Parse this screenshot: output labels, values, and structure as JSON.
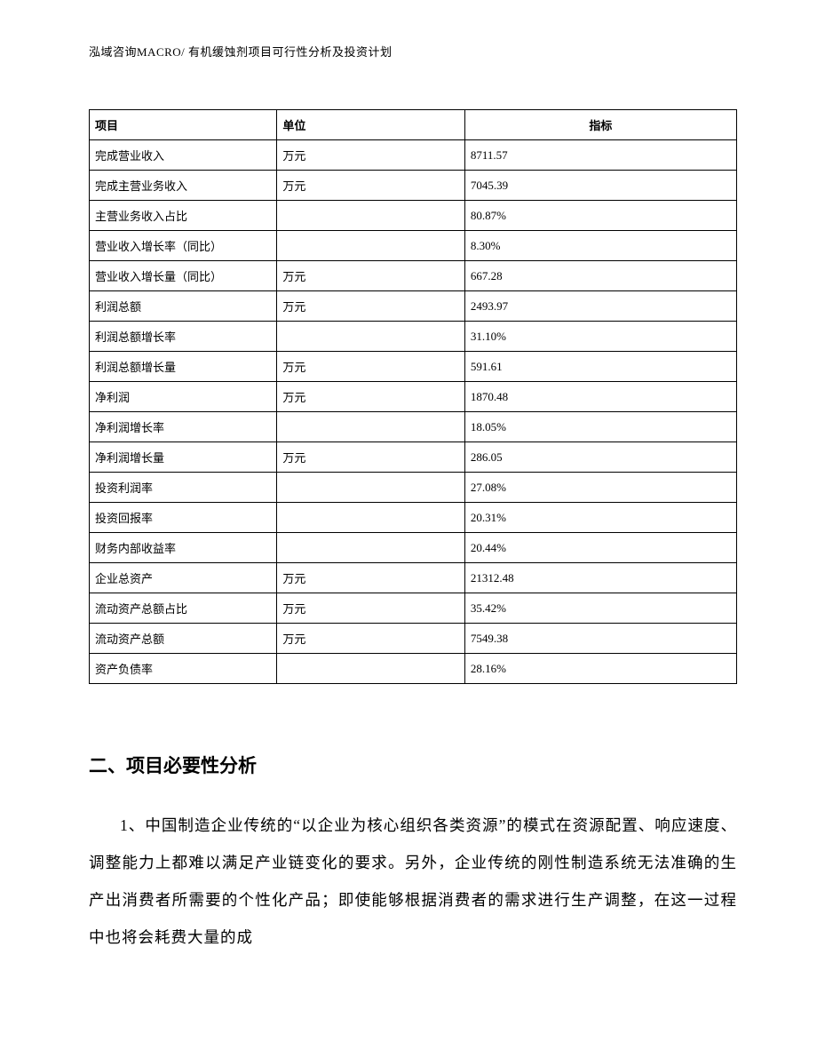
{
  "header": {
    "text": "泓域咨询MACRO/ 有机缓蚀剂项目可行性分析及投资计划"
  },
  "table": {
    "columns": [
      "项目",
      "单位",
      "指标"
    ],
    "rows": [
      [
        "完成营业收入",
        "万元",
        "8711.57"
      ],
      [
        "完成主营业务收入",
        "万元",
        "7045.39"
      ],
      [
        "主营业务收入占比",
        "",
        "80.87%"
      ],
      [
        "营业收入增长率（同比）",
        "",
        "8.30%"
      ],
      [
        "营业收入增长量（同比）",
        "万元",
        "667.28"
      ],
      [
        "利润总额",
        "万元",
        "2493.97"
      ],
      [
        "利润总额增长率",
        "",
        "31.10%"
      ],
      [
        "利润总额增长量",
        "万元",
        "591.61"
      ],
      [
        "净利润",
        "万元",
        "1870.48"
      ],
      [
        "净利润增长率",
        "",
        "18.05%"
      ],
      [
        "净利润增长量",
        "万元",
        "286.05"
      ],
      [
        "投资利润率",
        "",
        "27.08%"
      ],
      [
        "投资回报率",
        "",
        "20.31%"
      ],
      [
        "财务内部收益率",
        "",
        "20.44%"
      ],
      [
        "企业总资产",
        "万元",
        "21312.48"
      ],
      [
        "流动资产总额占比",
        "万元",
        "35.42%"
      ],
      [
        "流动资产总额",
        "万元",
        "7549.38"
      ],
      [
        "资产负债率",
        "",
        "28.16%"
      ]
    ]
  },
  "section": {
    "heading": "二、项目必要性分析",
    "paragraph1": "1、中国制造企业传统的“以企业为核心组织各类资源”的模式在资源配置、响应速度、调整能力上都难以满足产业链变化的要求。另外，企业传统的刚性制造系统无法准确的生产出消费者所需要的个性化产品；即使能够根据消费者的需求进行生产调整，在这一过程中也将会耗费大量的成"
  }
}
